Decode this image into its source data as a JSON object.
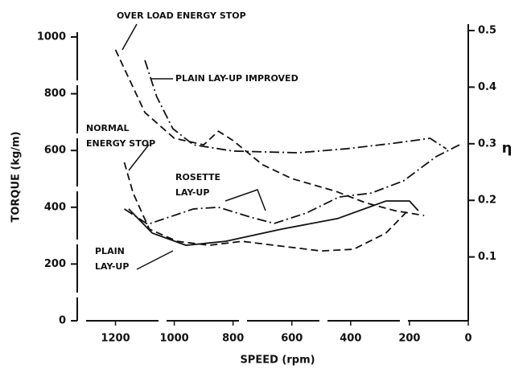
{
  "chart_data": {
    "type": "line",
    "xlabel": "SPEED (rpm)",
    "ylabel": "TORQUE (kg/m)",
    "y2label": "η",
    "xlim": [
      1300,
      0
    ],
    "xticks": [
      1200,
      1000,
      800,
      600,
      400,
      200,
      0
    ],
    "ylim": [
      0,
      1000
    ],
    "yticks": [
      0,
      200,
      400,
      600,
      800,
      1000
    ],
    "y2lim": [
      0,
      0.5
    ],
    "y2ticks": [
      0.1,
      0.2,
      0.3,
      0.4,
      0.5
    ],
    "series": [
      {
        "name": "OVER LOAD ENERGY STOP",
        "color": "#111",
        "linestyle": "dashed",
        "x": [
          1200,
          1100,
          1000,
          900,
          850,
          800,
          700,
          600,
          450,
          350,
          250,
          150
        ],
        "values": [
          955,
          734,
          643,
          620,
          668,
          635,
          550,
          501,
          456,
          416,
          388,
          371
        ]
      },
      {
        "name": "PLAIN LAY-UP IMPROVED",
        "color": "#111",
        "linestyle": "dashdot",
        "x": [
          1100,
          1060,
          1005,
          935,
          800,
          580,
          415,
          250,
          130,
          75
        ],
        "values": [
          918,
          790,
          677,
          620,
          598,
          592,
          606,
          626,
          643,
          606
        ]
      },
      {
        "name": "NORMAL ENERGY STOP",
        "color": "#111",
        "linestyle": "dashed",
        "x": [
          1170,
          1140,
          1085,
          990,
          880,
          770,
          660,
          500,
          390,
          280,
          200
        ],
        "values": [
          558,
          450,
          323,
          280,
          266,
          280,
          266,
          246,
          252,
          309,
          394
        ]
      },
      {
        "name": "ROSETTE LAY-UP",
        "color": "#111",
        "linestyle": "dashdot",
        "x": [
          1170,
          1090,
          935,
          850,
          740,
          660,
          550,
          440,
          330,
          220,
          110,
          30
        ],
        "values": [
          394,
          340,
          394,
          400,
          365,
          343,
          380,
          436,
          450,
          493,
          578,
          620
        ]
      },
      {
        "name": "PLAIN LAY-UP",
        "color": "#111",
        "linestyle": "solid",
        "x": [
          1155,
          1075,
          960,
          825,
          635,
          445,
          280,
          200,
          170
        ],
        "values": [
          394,
          309,
          266,
          280,
          323,
          360,
          422,
          422,
          388
        ]
      }
    ]
  }
}
